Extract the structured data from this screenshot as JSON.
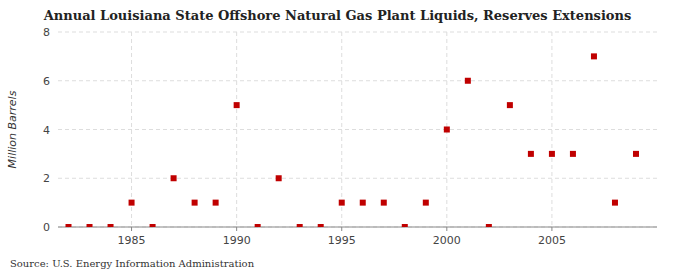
{
  "chart_data": {
    "type": "scatter",
    "title": "Annual Louisiana State Offshore Natural Gas Plant Liquids, Reserves Extensions",
    "y_label": "Million Barrels",
    "annotations": [
      "Source: U.S. Energy Information Administration"
    ],
    "x": [
      1982,
      1983,
      1984,
      1985,
      1986,
      1987,
      1988,
      1989,
      1990,
      1991,
      1992,
      1993,
      1994,
      1995,
      1996,
      1997,
      1998,
      1999,
      2000,
      2001,
      2002,
      2003,
      2004,
      2005,
      2006,
      2007,
      2008,
      2009
    ],
    "values": [
      0,
      0,
      0,
      1,
      0,
      2,
      1,
      1,
      5,
      0,
      2,
      0,
      0,
      1,
      1,
      1,
      0,
      1,
      4,
      6,
      0,
      5,
      3,
      3,
      3,
      7,
      1,
      3
    ],
    "color": "#c00000",
    "marker": "square",
    "xlim": [
      1981.5,
      2010
    ],
    "ylim": [
      0,
      8
    ],
    "xticks": [
      1985,
      1990,
      1995,
      2000,
      2005
    ],
    "yticks": [
      0,
      2,
      4,
      6,
      8
    ],
    "grid": true
  }
}
